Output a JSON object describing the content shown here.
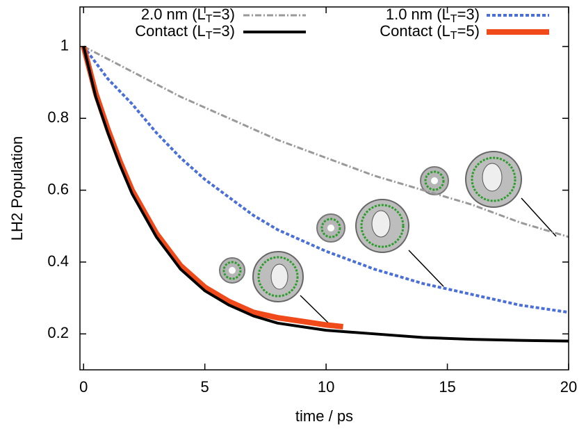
{
  "chart_data": {
    "type": "line",
    "xlabel": "time / ps",
    "ylabel": "LH2 Population",
    "xlim": [
      -0.15,
      20
    ],
    "ylim": [
      0.1,
      1.11
    ],
    "xticks": [
      0,
      5,
      10,
      15,
      20
    ],
    "yticks": [
      0.2,
      0.4,
      0.6,
      0.8,
      1
    ],
    "series": [
      {
        "name": "2.0 nm (LT=3)",
        "color": "#999999",
        "dash": "9,3,2,3",
        "width": 3,
        "x": [
          0,
          2,
          4,
          6,
          8,
          10,
          12,
          14,
          16,
          18,
          20
        ],
        "values": [
          1,
          0.93,
          0.86,
          0.8,
          0.74,
          0.69,
          0.64,
          0.6,
          0.56,
          0.51,
          0.47
        ]
      },
      {
        "name": "1.0 nm (LT=3)",
        "color": "#4a6fd8",
        "dash": "5,3",
        "width": 4,
        "x": [
          0,
          1,
          2,
          3,
          4,
          5,
          6,
          7,
          8,
          9,
          10,
          12,
          14,
          16,
          18,
          20
        ],
        "values": [
          1,
          0.91,
          0.84,
          0.76,
          0.69,
          0.63,
          0.58,
          0.53,
          0.49,
          0.46,
          0.43,
          0.38,
          0.34,
          0.31,
          0.28,
          0.26
        ]
      },
      {
        "name": "Contact (LT=5)",
        "color": "#f04a1a",
        "dash": "none",
        "width": 8,
        "x": [
          0,
          0.5,
          1,
          1.5,
          2,
          3,
          4,
          5,
          6,
          7,
          8,
          9,
          10,
          10.7
        ],
        "values": [
          1,
          0.87,
          0.77,
          0.68,
          0.6,
          0.48,
          0.39,
          0.33,
          0.29,
          0.26,
          0.245,
          0.235,
          0.225,
          0.22
        ]
      },
      {
        "name": "Contact (LT=3)",
        "color": "#000000",
        "dash": "none",
        "width": 4,
        "x": [
          0,
          0.5,
          1,
          1.5,
          2,
          3,
          4,
          5,
          6,
          7,
          8,
          9,
          10,
          12,
          14,
          16,
          18,
          20
        ],
        "values": [
          1,
          0.86,
          0.76,
          0.67,
          0.59,
          0.47,
          0.38,
          0.32,
          0.28,
          0.25,
          0.23,
          0.22,
          0.21,
          0.2,
          0.19,
          0.185,
          0.182,
          0.18
        ]
      }
    ]
  }
}
